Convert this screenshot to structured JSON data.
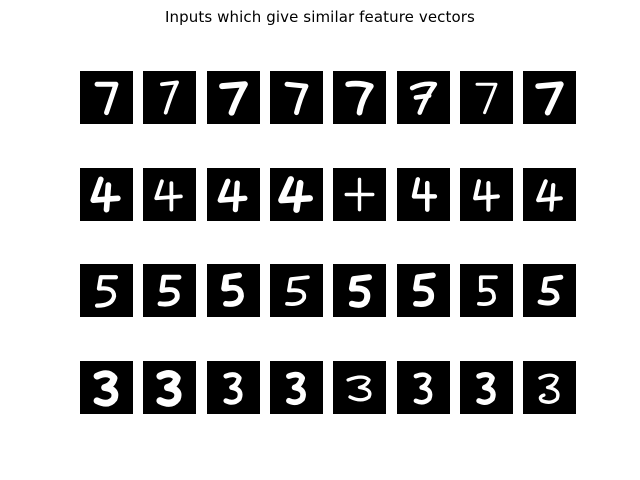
{
  "figure": {
    "title": "Inputs which give similar feature vectors"
  },
  "colors": {
    "background": "#ffffff",
    "tile": "#000000",
    "stroke": "#ffffff"
  },
  "rows": [
    {
      "digit": "7",
      "count": 8
    },
    {
      "digit": "4",
      "count": 8
    },
    {
      "digit": "5",
      "count": 8
    },
    {
      "digit": "3",
      "count": 8
    }
  ]
}
